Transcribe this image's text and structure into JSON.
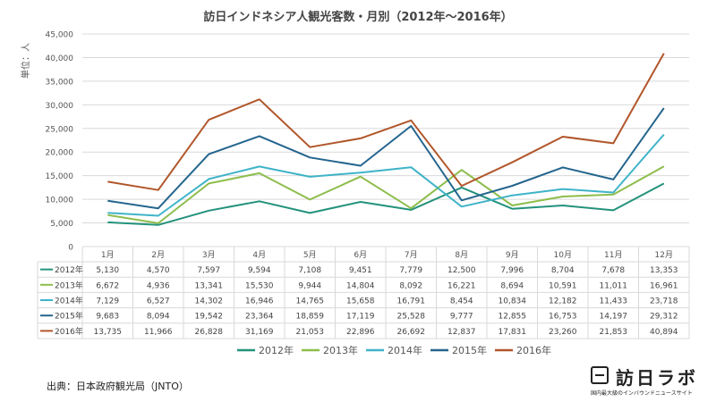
{
  "chart_data": {
    "type": "line",
    "title": "訪日インドネシア人観光客数・月別（2012年～2016年）",
    "ylabel": "単位：人",
    "ylim": [
      0,
      45000
    ],
    "yticks": [
      "0",
      "5,000",
      "10,000",
      "15,000",
      "20,000",
      "25,000",
      "30,000",
      "35,000",
      "40,000",
      "45,000"
    ],
    "categories": [
      "1月",
      "2月",
      "3月",
      "4月",
      "5月",
      "6月",
      "7月",
      "8月",
      "9月",
      "10月",
      "11月",
      "12月"
    ],
    "grid": true,
    "legend": "bottom",
    "series": [
      {
        "name": "2012年",
        "color": "#23927c",
        "values": [
          5130,
          4570,
          7597,
          9594,
          7108,
          9451,
          7779,
          12500,
          7996,
          8704,
          7678,
          13353
        ],
        "labels": [
          "5,130",
          "4,570",
          "7,597",
          "9,594",
          "7,108",
          "9,451",
          "7,779",
          "12,500",
          "7,996",
          "8,704",
          "7,678",
          "13,353"
        ]
      },
      {
        "name": "2013年",
        "color": "#8dbd4b",
        "values": [
          6672,
          4936,
          13341,
          15530,
          9944,
          14804,
          8092,
          16221,
          8694,
          10591,
          11011,
          16961
        ],
        "labels": [
          "6,672",
          "4,936",
          "13,341",
          "15,530",
          "9,944",
          "14,804",
          "8,092",
          "16,221",
          "8,694",
          "10,591",
          "11,011",
          "16,961"
        ]
      },
      {
        "name": "2014年",
        "color": "#3fb3c8",
        "values": [
          7129,
          6527,
          14302,
          16946,
          14765,
          15658,
          16791,
          8454,
          10834,
          12182,
          11433,
          23718
        ],
        "labels": [
          "7,129",
          "6,527",
          "14,302",
          "16,946",
          "14,765",
          "15,658",
          "16,791",
          "8,454",
          "10,834",
          "12,182",
          "11,433",
          "23,718"
        ]
      },
      {
        "name": "2015年",
        "color": "#24658e",
        "values": [
          9683,
          8094,
          19542,
          23364,
          18859,
          17119,
          25528,
          9777,
          12855,
          16753,
          14197,
          29312
        ],
        "labels": [
          "9,683",
          "8,094",
          "19,542",
          "23,364",
          "18,859",
          "17,119",
          "25,528",
          "9,777",
          "12,855",
          "16,753",
          "14,197",
          "29,312"
        ]
      },
      {
        "name": "2016年",
        "color": "#b1562a",
        "values": [
          13735,
          11966,
          26828,
          31169,
          21053,
          22896,
          26692,
          12837,
          17831,
          23260,
          21853,
          40894
        ],
        "labels": [
          "13,735",
          "11,966",
          "26,828",
          "31,169",
          "21,053",
          "22,896",
          "26,692",
          "12,837",
          "17,831",
          "23,260",
          "21,853",
          "40,894"
        ]
      }
    ]
  },
  "source": "出典：日本政府観光局（JNTO）",
  "logo": {
    "name": "訪日ラボ",
    "tagline": "国内最大級のインバウンドニュースサイト"
  }
}
